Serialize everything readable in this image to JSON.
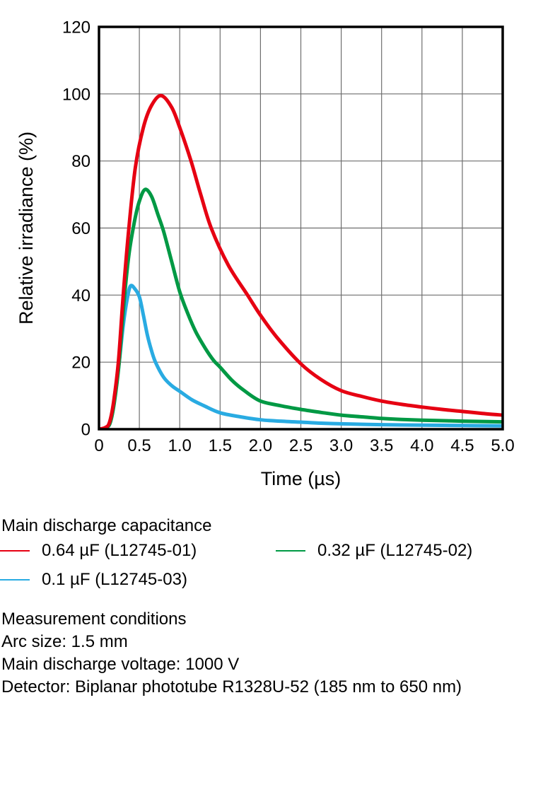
{
  "chart_data": {
    "type": "line",
    "title": "",
    "xlabel": "Time (µs)",
    "ylabel": "Relative irradiance (%)",
    "xlim": [
      0,
      5
    ],
    "ylim": [
      0,
      120
    ],
    "grid": true,
    "legend_position": "below",
    "x_ticks": [
      0,
      0.5,
      1.0,
      1.5,
      2.0,
      2.5,
      3.0,
      3.5,
      4.0,
      4.5,
      5.0
    ],
    "x_tick_labels": [
      "0",
      "0.5",
      "1.0",
      "1.5",
      "2.0",
      "2.5",
      "3.0",
      "3.5",
      "4.0",
      "4.5",
      "5.0"
    ],
    "y_ticks": [
      0,
      20,
      40,
      60,
      80,
      100,
      120
    ],
    "y_tick_labels": [
      "0",
      "20",
      "40",
      "60",
      "80",
      "100",
      "120"
    ],
    "grid_color": "#6e6e6e",
    "frame_color": "#000000",
    "series": [
      {
        "name": "0.64 µF (L12745-01)",
        "color": "#e60012",
        "points": [
          [
            0,
            0
          ],
          [
            0.08,
            0.5
          ],
          [
            0.13,
            2
          ],
          [
            0.18,
            8
          ],
          [
            0.24,
            20
          ],
          [
            0.3,
            40
          ],
          [
            0.37,
            60
          ],
          [
            0.45,
            78
          ],
          [
            0.55,
            90
          ],
          [
            0.65,
            96.5
          ],
          [
            0.77,
            99.5
          ],
          [
            0.9,
            96
          ],
          [
            1.0,
            90
          ],
          [
            1.14,
            80
          ],
          [
            1.26,
            70
          ],
          [
            1.39,
            60
          ],
          [
            1.6,
            49
          ],
          [
            1.84,
            40
          ],
          [
            2.0,
            34
          ],
          [
            2.2,
            27.5
          ],
          [
            2.5,
            19.5
          ],
          [
            2.75,
            14.8
          ],
          [
            3.0,
            11.5
          ],
          [
            3.25,
            9.8
          ],
          [
            3.5,
            8.4
          ],
          [
            3.75,
            7.4
          ],
          [
            4.0,
            6.6
          ],
          [
            4.25,
            5.9
          ],
          [
            4.5,
            5.3
          ],
          [
            4.75,
            4.7
          ],
          [
            5.0,
            4.2
          ]
        ]
      },
      {
        "name": "0.32 µF (L12745-02)",
        "color": "#009944",
        "points": [
          [
            0,
            0
          ],
          [
            0.09,
            0.5
          ],
          [
            0.14,
            2
          ],
          [
            0.19,
            8
          ],
          [
            0.25,
            20
          ],
          [
            0.31,
            38
          ],
          [
            0.37,
            52
          ],
          [
            0.44,
            62
          ],
          [
            0.5,
            68
          ],
          [
            0.57,
            71.5
          ],
          [
            0.65,
            69.5
          ],
          [
            0.73,
            64
          ],
          [
            0.8,
            59
          ],
          [
            0.9,
            50
          ],
          [
            1.0,
            41
          ],
          [
            1.1,
            34.5
          ],
          [
            1.2,
            29
          ],
          [
            1.32,
            24
          ],
          [
            1.42,
            20.5
          ],
          [
            1.5,
            18.5
          ],
          [
            1.65,
            14.5
          ],
          [
            1.8,
            11.5
          ],
          [
            2.0,
            8.4
          ],
          [
            2.25,
            7.0
          ],
          [
            2.5,
            5.9
          ],
          [
            2.75,
            5.0
          ],
          [
            3.0,
            4.2
          ],
          [
            3.25,
            3.7
          ],
          [
            3.5,
            3.2
          ],
          [
            3.75,
            2.9
          ],
          [
            4.0,
            2.7
          ],
          [
            4.5,
            2.4
          ],
          [
            5.0,
            2.2
          ]
        ]
      },
      {
        "name": "0.1 µF (L12745-03)",
        "color": "#29abe2",
        "points": [
          [
            0,
            0
          ],
          [
            0.1,
            0.5
          ],
          [
            0.15,
            3
          ],
          [
            0.2,
            10
          ],
          [
            0.25,
            20
          ],
          [
            0.3,
            31
          ],
          [
            0.35,
            39
          ],
          [
            0.39,
            42.7
          ],
          [
            0.44,
            42
          ],
          [
            0.5,
            39.5
          ],
          [
            0.55,
            34
          ],
          [
            0.6,
            28
          ],
          [
            0.65,
            23.5
          ],
          [
            0.7,
            20
          ],
          [
            0.8,
            15.5
          ],
          [
            0.9,
            13
          ],
          [
            1.0,
            11.3
          ],
          [
            1.15,
            8.8
          ],
          [
            1.3,
            7.0
          ],
          [
            1.5,
            4.9
          ],
          [
            1.75,
            3.7
          ],
          [
            2.0,
            2.8
          ],
          [
            2.25,
            2.4
          ],
          [
            2.5,
            2.1
          ],
          [
            2.75,
            1.8
          ],
          [
            3.0,
            1.6
          ],
          [
            3.5,
            1.35
          ],
          [
            4.0,
            1.2
          ],
          [
            4.5,
            1.1
          ],
          [
            5.0,
            1.0
          ]
        ]
      }
    ]
  },
  "legend": {
    "title": "Main discharge capacitance",
    "items": [
      {
        "label": "0.64 µF (L12745-01)",
        "color": "#e60012"
      },
      {
        "label": "0.32 µF (L12745-02)",
        "color": "#009944"
      },
      {
        "label": "0.1 µF (L12745-03)",
        "color": "#29abe2"
      }
    ]
  },
  "conditions": {
    "title": "Measurement conditions",
    "lines": [
      "Arc size: 1.5 mm",
      "Main discharge voltage: 1000 V",
      "Detector: Biplanar phototube R1328U-52 (185 nm to 650 nm)"
    ]
  }
}
